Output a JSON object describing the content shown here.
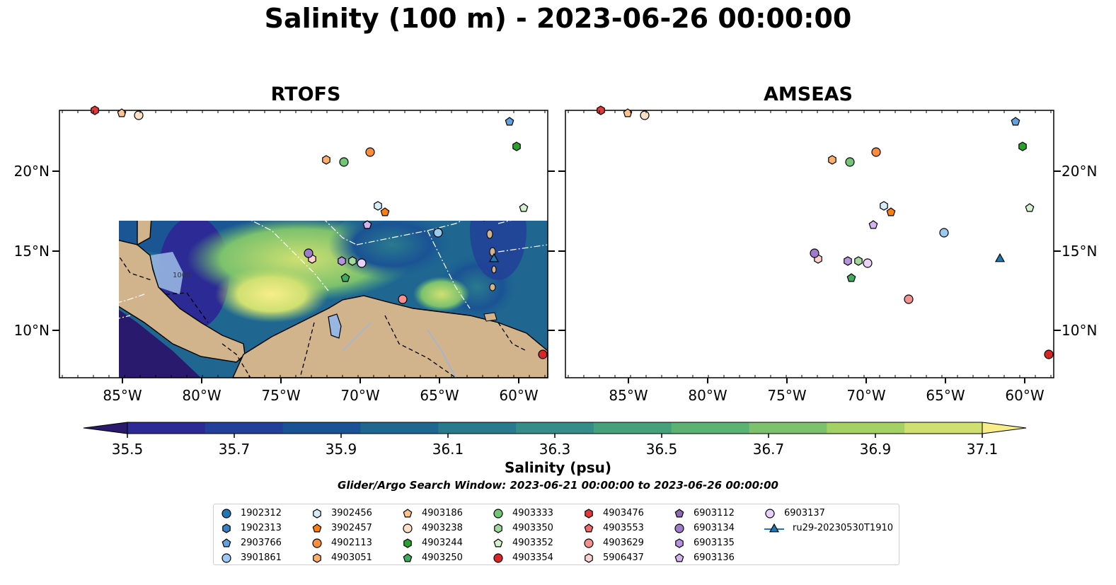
{
  "title": "Salinity (100 m) - 2023-06-26 00:00:00",
  "panels": [
    {
      "title": "RTOFS"
    },
    {
      "title": "AMSEAS"
    }
  ],
  "lat_ticks": [
    "20°N",
    "15°N",
    "10°N"
  ],
  "lon_ticks": [
    "85°W",
    "80°W",
    "75°W",
    "70°W",
    "65°W",
    "60°W"
  ],
  "contour_label": "1000",
  "colorbar": {
    "label": "Salinity (psu)",
    "ticks": [
      "35.5",
      "35.7",
      "35.9",
      "36.1",
      "36.3",
      "36.5",
      "36.7",
      "36.9",
      "37.1"
    ],
    "colors": [
      "#2a1a6d",
      "#2c2a94",
      "#223f99",
      "#1a5394",
      "#1f6791",
      "#2a7a8e",
      "#368c88",
      "#47a07c",
      "#5cb273",
      "#7cc26d",
      "#a3d166",
      "#cfe071",
      "#f7ee8a"
    ]
  },
  "search_window": "Glider/Argo Search Window: 2023-06-21 00:00:00 to 2023-06-26 00:00:00",
  "legend": [
    {
      "label": "1902312",
      "marker": "circle",
      "color": "#1f77b4"
    },
    {
      "label": "1902313",
      "marker": "hexagon",
      "color": "#3a7fc1"
    },
    {
      "label": "2903766",
      "marker": "pentagon",
      "color": "#5fa2dd"
    },
    {
      "label": "3901861",
      "marker": "circle",
      "color": "#9cc9ef"
    },
    {
      "label": "3902456",
      "marker": "hexagon",
      "color": "#d6ecf8"
    },
    {
      "label": "3902457",
      "marker": "pentagon",
      "color": "#ff7f0e"
    },
    {
      "label": "4902113",
      "marker": "circle",
      "color": "#fd8d3c"
    },
    {
      "label": "4903051",
      "marker": "hexagon",
      "color": "#fdae6b"
    },
    {
      "label": "4903186",
      "marker": "pentagon",
      "color": "#fdc48f"
    },
    {
      "label": "4903238",
      "marker": "circle",
      "color": "#fde0c5"
    },
    {
      "label": "4903244",
      "marker": "hexagon",
      "color": "#2ca02c"
    },
    {
      "label": "4903250",
      "marker": "pentagon",
      "color": "#41ab5d"
    },
    {
      "label": "4903333",
      "marker": "circle",
      "color": "#74c476"
    },
    {
      "label": "4903350",
      "marker": "hexagon",
      "color": "#a1d99b"
    },
    {
      "label": "4903352",
      "marker": "pentagon",
      "color": "#d4f0cf"
    },
    {
      "label": "4903354",
      "marker": "circle",
      "color": "#d62728"
    },
    {
      "label": "4903476",
      "marker": "hexagon",
      "color": "#e0383b"
    },
    {
      "label": "4903553",
      "marker": "pentagon",
      "color": "#ef6a6b"
    },
    {
      "label": "4903629",
      "marker": "circle",
      "color": "#f4908f"
    },
    {
      "label": "5906437",
      "marker": "hexagon",
      "color": "#fbd0cf"
    },
    {
      "label": "6903112",
      "marker": "pentagon",
      "color": "#8c6bb1"
    },
    {
      "label": "6903134",
      "marker": "circle",
      "color": "#9e7cc9"
    },
    {
      "label": "6903135",
      "marker": "hexagon",
      "color": "#b593e0"
    },
    {
      "label": "6903136",
      "marker": "pentagon",
      "color": "#d3b4f0"
    },
    {
      "label": "6903137",
      "marker": "circle",
      "color": "#e8d2fa"
    },
    {
      "label": "ru29-20230530T1910",
      "marker": "triangle-line",
      "color": "#1f77b4"
    }
  ]
}
